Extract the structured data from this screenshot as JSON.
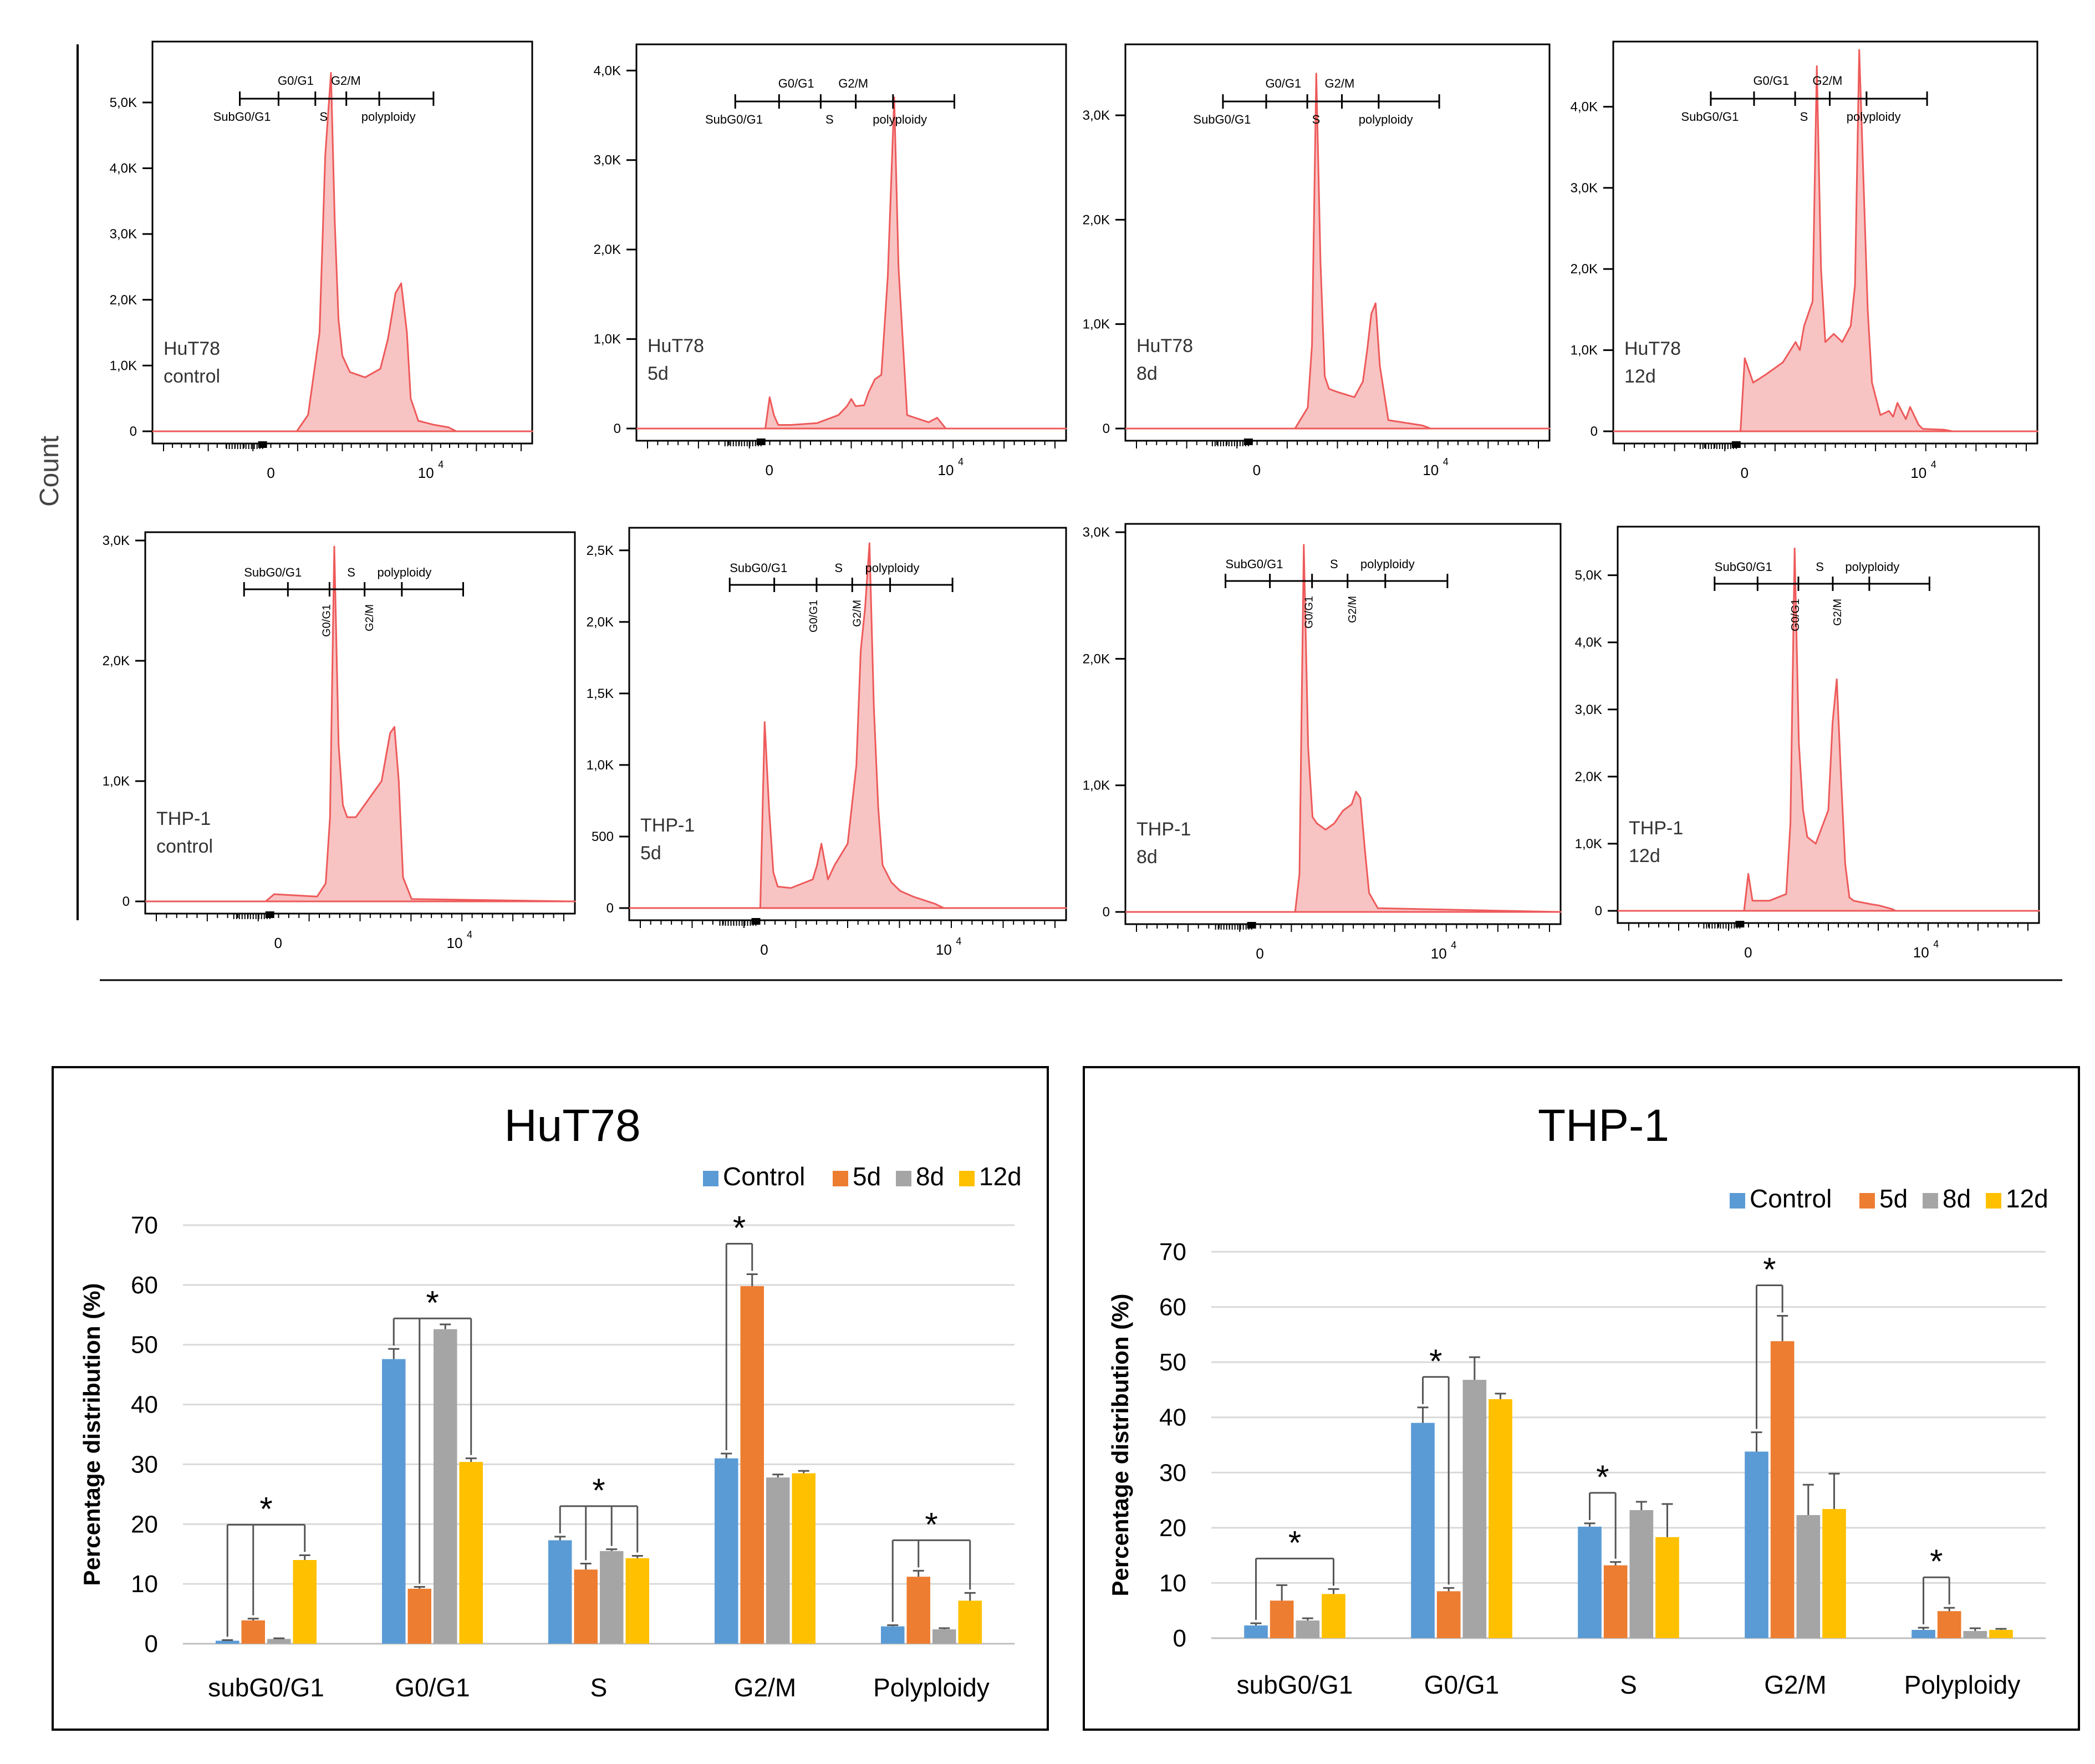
{
  "figure": {
    "count_label": "Count"
  },
  "colors": {
    "hist_fill": "#f8c3c3",
    "hist_line": "#ee5a5a",
    "series": [
      "#5b9bd5",
      "#ed7d31",
      "#a5a5a5",
      "#ffc000"
    ],
    "grid": "#d9d9d9"
  },
  "chart_data": [
    {
      "id": "hist-hut78-control",
      "type": "area",
      "label_lines": [
        "HuT78",
        "control"
      ],
      "y_max": 5800,
      "y_ticks": [
        0,
        1000,
        2000,
        3000,
        4000,
        5000
      ],
      "y_tick_labels": [
        "0",
        "1,0K",
        "2,0K",
        "3,0K",
        "4,0K",
        "5,0K"
      ],
      "x_tick_labels": [
        "0",
        "10"
      ],
      "x_exponent": "4",
      "gate_top": [
        "G0/G1",
        "G2/M"
      ],
      "gate_bottom": [
        "SubG0/G1",
        "S",
        "polyploidy"
      ],
      "gate_style": "top",
      "x": [
        0,
        0.38,
        0.41,
        0.44,
        0.455,
        0.47,
        0.48,
        0.49,
        0.5,
        0.52,
        0.56,
        0.6,
        0.62,
        0.64,
        0.655,
        0.67,
        0.68,
        0.7,
        0.74,
        0.78,
        0.8,
        1
      ],
      "y": [
        0,
        0,
        250,
        1500,
        4200,
        5450,
        3200,
        1700,
        1150,
        900,
        820,
        950,
        1400,
        2100,
        2250,
        1500,
        500,
        160,
        100,
        60,
        0,
        0
      ]
    },
    {
      "id": "hist-hut78-5d",
      "type": "area",
      "label_lines": [
        "HuT78",
        "5d"
      ],
      "y_max": 4200,
      "y_ticks": [
        0,
        1000,
        2000,
        3000,
        4000
      ],
      "y_tick_labels": [
        "0",
        "1,0K",
        "2,0K",
        "3,0K",
        "4,0K"
      ],
      "x_tick_labels": [
        "0",
        "10"
      ],
      "x_exponent": "4",
      "gate_top": [
        "G0/G1",
        "G2/M"
      ],
      "gate_bottom": [
        "SubG0/G1",
        "S",
        "polyploidy"
      ],
      "gate_style": "top",
      "x": [
        0,
        0.3,
        0.31,
        0.32,
        0.33,
        0.36,
        0.42,
        0.47,
        0.49,
        0.5,
        0.51,
        0.53,
        0.54,
        0.555,
        0.57,
        0.585,
        0.6,
        0.61,
        0.63,
        0.68,
        0.7,
        0.72,
        1
      ],
      "y": [
        0,
        0,
        350,
        150,
        40,
        40,
        60,
        150,
        250,
        330,
        250,
        260,
        400,
        550,
        600,
        1700,
        3700,
        1800,
        150,
        70,
        120,
        0,
        0
      ]
    },
    {
      "id": "hist-hut78-8d",
      "type": "area",
      "label_lines": [
        "HuT78",
        "8d"
      ],
      "y_max": 3600,
      "y_ticks": [
        0,
        1000,
        2000,
        3000
      ],
      "y_tick_labels": [
        "0",
        "1,0K",
        "2,0K",
        "3,0K"
      ],
      "x_tick_labels": [
        "0",
        "10"
      ],
      "x_exponent": "4",
      "gate_top": [
        "G0/G1",
        "G2/M"
      ],
      "gate_bottom": [
        "SubG0/G1",
        "S",
        "polyploidy"
      ],
      "gate_style": "top",
      "x": [
        0,
        0.4,
        0.43,
        0.44,
        0.45,
        0.46,
        0.47,
        0.48,
        0.5,
        0.54,
        0.56,
        0.57,
        0.58,
        0.59,
        0.6,
        0.62,
        0.7,
        0.72,
        1
      ],
      "y": [
        0,
        0,
        200,
        800,
        3400,
        1600,
        500,
        380,
        350,
        300,
        450,
        750,
        1100,
        1200,
        600,
        80,
        30,
        0,
        0
      ]
    },
    {
      "id": "hist-hut78-12d",
      "type": "area",
      "label_lines": [
        "HuT78",
        "12d"
      ],
      "y_max": 4700,
      "y_ticks": [
        0,
        1000,
        2000,
        3000,
        4000
      ],
      "y_tick_labels": [
        "0",
        "1,0K",
        "2,0K",
        "3,0K",
        "4,0K"
      ],
      "x_tick_labels": [
        "0",
        "10"
      ],
      "x_exponent": "4",
      "gate_top": [
        "G0/G1",
        "G2/M"
      ],
      "gate_bottom": [
        "SubG0/G1",
        "S",
        "polyploidy"
      ],
      "gate_style": "top",
      "x": [
        0,
        0.3,
        0.31,
        0.33,
        0.36,
        0.4,
        0.43,
        0.44,
        0.45,
        0.47,
        0.48,
        0.49,
        0.5,
        0.52,
        0.54,
        0.56,
        0.57,
        0.58,
        0.6,
        0.61,
        0.63,
        0.65,
        0.66,
        0.67,
        0.69,
        0.7,
        0.72,
        0.73,
        0.78,
        0.8,
        1
      ],
      "y": [
        0,
        0,
        900,
        600,
        700,
        850,
        1100,
        1000,
        1300,
        1600,
        4500,
        2000,
        1100,
        1200,
        1100,
        1300,
        1800,
        4700,
        1500,
        600,
        200,
        250,
        180,
        350,
        150,
        300,
        80,
        30,
        20,
        0,
        0
      ]
    },
    {
      "id": "hist-thp1-control",
      "type": "area",
      "label_lines": [
        "THP-1",
        "control"
      ],
      "y_max": 3000,
      "y_ticks": [
        0,
        1000,
        2000,
        3000
      ],
      "y_tick_labels": [
        "0",
        "1,0K",
        "2,0K",
        "3,0K"
      ],
      "x_tick_labels": [
        "0",
        "10"
      ],
      "x_exponent": "4",
      "gate_top": [
        "SubG0/G1",
        "S",
        "polyploidy"
      ],
      "gate_bottom": [
        "G0/G1",
        "G2/M"
      ],
      "gate_style": "bottom",
      "x": [
        0,
        0.28,
        0.3,
        0.4,
        0.42,
        0.43,
        0.44,
        0.45,
        0.46,
        0.47,
        0.49,
        0.52,
        0.55,
        0.56,
        0.57,
        0.58,
        0.59,
        0.6,
        0.62,
        1
      ],
      "y": [
        0,
        0,
        60,
        40,
        150,
        700,
        2950,
        1300,
        800,
        700,
        700,
        850,
        1000,
        1200,
        1400,
        1450,
        1000,
        200,
        20,
        0
      ]
    },
    {
      "id": "hist-thp1-5d",
      "type": "area",
      "label_lines": [
        "THP-1",
        "5d"
      ],
      "y_max": 2600,
      "y_ticks": [
        0,
        500,
        1000,
        1500,
        2000,
        2500
      ],
      "y_tick_labels": [
        "0",
        "500",
        "1,0K",
        "1,5K",
        "2,0K",
        "2,5K"
      ],
      "x_tick_labels": [
        "0",
        "10"
      ],
      "x_exponent": "4",
      "gate_top": [
        "SubG0/G1",
        "S",
        "polyploidy"
      ],
      "gate_bottom": [
        "G0/G1",
        "G2/M"
      ],
      "gate_style": "bottom",
      "x": [
        0,
        0.3,
        0.31,
        0.32,
        0.33,
        0.34,
        0.37,
        0.42,
        0.43,
        0.44,
        0.455,
        0.47,
        0.5,
        0.52,
        0.53,
        0.54,
        0.55,
        0.56,
        0.57,
        0.58,
        0.6,
        0.62,
        0.65,
        0.7,
        0.72,
        1
      ],
      "y": [
        0,
        0,
        1300,
        700,
        250,
        150,
        140,
        200,
        300,
        450,
        200,
        300,
        450,
        1000,
        1800,
        2100,
        2550,
        1400,
        700,
        300,
        180,
        120,
        80,
        30,
        0,
        0
      ]
    },
    {
      "id": "hist-thp1-8d",
      "type": "area",
      "label_lines": [
        "THP-1",
        "8d"
      ],
      "y_max": 3000,
      "y_ticks": [
        0,
        1000,
        2000,
        3000
      ],
      "y_tick_labels": [
        "0",
        "1,0K",
        "2,0K",
        "3,0K"
      ],
      "x_tick_labels": [
        "0",
        "10"
      ],
      "x_exponent": "4",
      "gate_top": [
        "SubG0/G1",
        "S",
        "polyploidy"
      ],
      "gate_bottom": [
        "G0/G1",
        "G2/M"
      ],
      "gate_style": "bottom",
      "x": [
        0,
        0.39,
        0.4,
        0.41,
        0.42,
        0.43,
        0.44,
        0.46,
        0.48,
        0.5,
        0.52,
        0.53,
        0.54,
        0.55,
        0.56,
        0.58,
        1
      ],
      "y": [
        0,
        0,
        300,
        2900,
        1300,
        750,
        700,
        650,
        700,
        800,
        850,
        950,
        900,
        500,
        150,
        30,
        0
      ]
    },
    {
      "id": "hist-thp1-12d",
      "type": "area",
      "label_lines": [
        "THP-1",
        "12d"
      ],
      "y_max": 5600,
      "y_ticks": [
        0,
        1000,
        2000,
        3000,
        4000,
        5000
      ],
      "y_tick_labels": [
        "0",
        "1,0K",
        "2,0K",
        "3,0K",
        "4,0K",
        "5,0K"
      ],
      "x_tick_labels": [
        "0",
        "10"
      ],
      "x_exponent": "4",
      "gate_top": [
        "SubG0/G1",
        "S",
        "polyploidy"
      ],
      "gate_bottom": [
        "G0/G1",
        "G2/M"
      ],
      "gate_style": "bottom",
      "x": [
        0,
        0.3,
        0.31,
        0.32,
        0.36,
        0.4,
        0.41,
        0.42,
        0.43,
        0.44,
        0.45,
        0.47,
        0.5,
        0.51,
        0.52,
        0.53,
        0.54,
        0.55,
        0.56,
        0.6,
        0.62,
        0.65,
        0.66,
        1
      ],
      "y": [
        0,
        0,
        550,
        150,
        150,
        250,
        1300,
        5400,
        2500,
        1500,
        1100,
        1000,
        1500,
        2800,
        3450,
        2000,
        700,
        200,
        150,
        100,
        80,
        30,
        0,
        0
      ]
    },
    {
      "id": "bar-hut78",
      "type": "bar",
      "title": "HuT78",
      "ylabel": "Percentage distribution (%)",
      "ylim": [
        0,
        70
      ],
      "y_ticks": [
        0,
        10,
        20,
        30,
        40,
        50,
        60,
        70
      ],
      "categories": [
        "subG0/G1",
        "G0/G1",
        "S",
        "G2/M",
        "Polyploidy"
      ],
      "series": [
        {
          "name": "Control",
          "values": [
            0.5,
            47.6,
            17.3,
            31.0,
            2.9
          ],
          "errors": [
            0.1,
            1.7,
            0.6,
            0.8,
            0.2
          ]
        },
        {
          "name": "5d",
          "values": [
            3.9,
            9.2,
            12.4,
            59.8,
            11.2
          ],
          "errors": [
            0.3,
            0.3,
            1.0,
            2.0,
            1.0
          ]
        },
        {
          "name": "8d",
          "values": [
            0.8,
            52.6,
            15.5,
            27.8,
            2.4
          ],
          "errors": [
            0.1,
            0.8,
            0.3,
            0.5,
            0.2
          ]
        },
        {
          "name": "12d",
          "values": [
            14.0,
            30.4,
            14.3,
            28.5,
            7.2
          ],
          "errors": [
            0.8,
            0.6,
            0.4,
            0.4,
            1.3
          ]
        }
      ],
      "significance": [
        {
          "category": 0,
          "from": 0,
          "to": [
            1,
            3
          ],
          "label": "*"
        },
        {
          "category": 1,
          "from": 0,
          "to": [
            1,
            3
          ],
          "label": "*"
        },
        {
          "category": 2,
          "from": 0,
          "to": [
            1,
            2,
            3
          ],
          "label": "*"
        },
        {
          "category": 3,
          "from": 0,
          "to": [
            1
          ],
          "label": "*"
        },
        {
          "category": 4,
          "from": 0,
          "to": [
            1,
            3
          ],
          "label": "*"
        }
      ]
    },
    {
      "id": "bar-thp1",
      "type": "bar",
      "title": "THP-1",
      "ylabel": "Percentage distribution (%)",
      "ylim": [
        0,
        70
      ],
      "y_ticks": [
        0,
        10,
        20,
        30,
        40,
        50,
        60,
        70
      ],
      "categories": [
        "subG0/G1",
        "G0/G1",
        "S",
        "G2/M",
        "Polyploidy"
      ],
      "series": [
        {
          "name": "Control",
          "values": [
            2.3,
            39.0,
            20.2,
            33.8,
            1.5
          ],
          "errors": [
            0.4,
            2.8,
            0.6,
            3.5,
            0.4
          ]
        },
        {
          "name": "5d",
          "values": [
            6.8,
            8.5,
            13.2,
            53.8,
            4.9
          ],
          "errors": [
            2.8,
            0.6,
            0.6,
            4.6,
            0.6
          ]
        },
        {
          "name": "8d",
          "values": [
            3.2,
            46.8,
            23.2,
            22.3,
            1.3
          ],
          "errors": [
            0.4,
            4.1,
            1.5,
            5.5,
            0.5
          ]
        },
        {
          "name": "12d",
          "values": [
            8.0,
            43.3,
            18.3,
            23.4,
            1.5
          ],
          "errors": [
            0.9,
            1.0,
            6.0,
            6.4,
            0.2
          ]
        }
      ],
      "significance": [
        {
          "category": 0,
          "from": 0,
          "to": [
            3
          ],
          "label": "*"
        },
        {
          "category": 1,
          "from": 0,
          "to": [
            1
          ],
          "label": "*"
        },
        {
          "category": 2,
          "from": 0,
          "to": [
            1
          ],
          "label": "*"
        },
        {
          "category": 3,
          "from": 0,
          "to": [
            1
          ],
          "label": "*"
        },
        {
          "category": 4,
          "from": 0,
          "to": [
            1
          ],
          "label": "*"
        }
      ]
    }
  ]
}
